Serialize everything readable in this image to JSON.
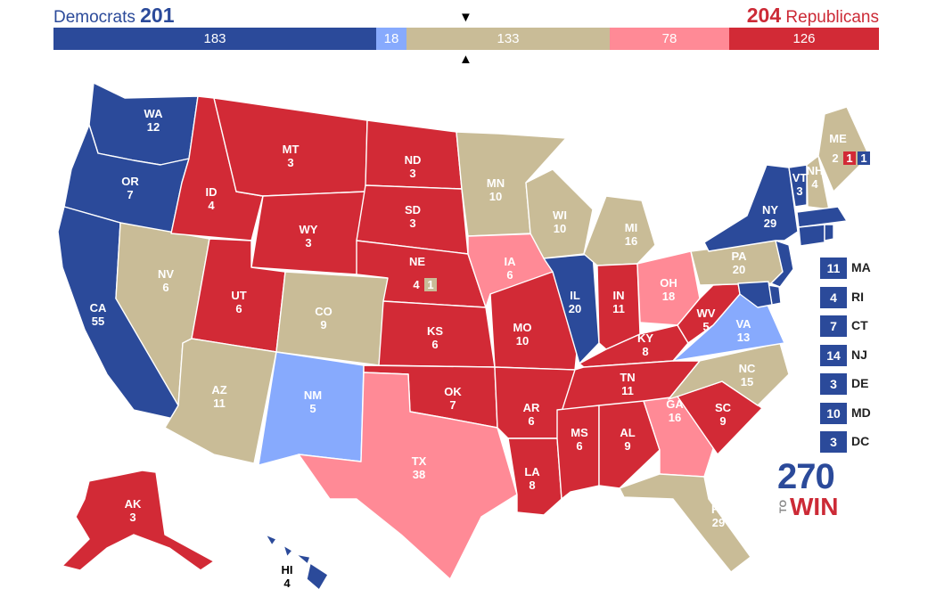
{
  "header": {
    "dem_label": "Democrats",
    "dem_total": "201",
    "rep_total": "204",
    "rep_label": "Republicans"
  },
  "colors": {
    "solid_dem": "#2b4a9a",
    "lean_dem": "#87aafd",
    "tossup": "#c9bc97",
    "lean_rep": "#ff8a96",
    "solid_rep": "#d22a36"
  },
  "bar": [
    {
      "value": "183",
      "category": "solid_dem"
    },
    {
      "value": "18",
      "category": "lean_dem"
    },
    {
      "value": "133",
      "category": "tossup"
    },
    {
      "value": "78",
      "category": "lean_rep"
    },
    {
      "value": "126",
      "category": "solid_rep"
    }
  ],
  "markers": {
    "down": "▼",
    "up": "▲"
  },
  "states": {
    "WA": {
      "ev": "12",
      "category": "solid_dem"
    },
    "OR": {
      "ev": "7",
      "category": "solid_dem"
    },
    "CA": {
      "ev": "55",
      "category": "solid_dem"
    },
    "NV": {
      "ev": "6",
      "category": "tossup"
    },
    "ID": {
      "ev": "4",
      "category": "solid_rep"
    },
    "MT": {
      "ev": "3",
      "category": "solid_rep"
    },
    "WY": {
      "ev": "3",
      "category": "solid_rep"
    },
    "UT": {
      "ev": "6",
      "category": "solid_rep"
    },
    "AZ": {
      "ev": "11",
      "category": "tossup"
    },
    "CO": {
      "ev": "9",
      "category": "tossup"
    },
    "NM": {
      "ev": "5",
      "category": "lean_dem"
    },
    "ND": {
      "ev": "3",
      "category": "solid_rep"
    },
    "SD": {
      "ev": "3",
      "category": "solid_rep"
    },
    "NE": {
      "ev": "4",
      "category": "solid_rep"
    },
    "KS": {
      "ev": "6",
      "category": "solid_rep"
    },
    "OK": {
      "ev": "7",
      "category": "solid_rep"
    },
    "TX": {
      "ev": "38",
      "category": "lean_rep"
    },
    "MN": {
      "ev": "10",
      "category": "tossup"
    },
    "IA": {
      "ev": "6",
      "category": "lean_rep"
    },
    "MO": {
      "ev": "10",
      "category": "solid_rep"
    },
    "AR": {
      "ev": "6",
      "category": "solid_rep"
    },
    "LA": {
      "ev": "8",
      "category": "solid_rep"
    },
    "WI": {
      "ev": "10",
      "category": "tossup"
    },
    "IL": {
      "ev": "20",
      "category": "solid_dem"
    },
    "MI": {
      "ev": "16",
      "category": "tossup"
    },
    "IN": {
      "ev": "11",
      "category": "solid_rep"
    },
    "OH": {
      "ev": "18",
      "category": "lean_rep"
    },
    "KY": {
      "ev": "8",
      "category": "solid_rep"
    },
    "TN": {
      "ev": "11",
      "category": "solid_rep"
    },
    "MS": {
      "ev": "6",
      "category": "solid_rep"
    },
    "AL": {
      "ev": "9",
      "category": "solid_rep"
    },
    "GA": {
      "ev": "16",
      "category": "lean_rep"
    },
    "FL": {
      "ev": "29",
      "category": "tossup"
    },
    "SC": {
      "ev": "9",
      "category": "solid_rep"
    },
    "NC": {
      "ev": "15",
      "category": "tossup"
    },
    "VA": {
      "ev": "13",
      "category": "lean_dem"
    },
    "WV": {
      "ev": "5",
      "category": "solid_rep"
    },
    "PA": {
      "ev": "20",
      "category": "tossup"
    },
    "NY": {
      "ev": "29",
      "category": "solid_dem"
    },
    "VT": {
      "ev": "3",
      "category": "solid_dem"
    },
    "NH": {
      "ev": "4",
      "category": "tossup"
    },
    "ME": {
      "ev": "",
      "category": "tossup"
    },
    "AK": {
      "ev": "3",
      "category": "solid_rep"
    },
    "HI": {
      "ev": "4",
      "category": "solid_dem"
    }
  },
  "splits": {
    "ME": [
      "2",
      "1",
      "1"
    ],
    "NE": [
      "4",
      "1"
    ]
  },
  "small_states": [
    {
      "abbr": "MA",
      "ev": "11",
      "category": "solid_dem"
    },
    {
      "abbr": "RI",
      "ev": "4",
      "category": "solid_dem"
    },
    {
      "abbr": "CT",
      "ev": "7",
      "category": "solid_dem"
    },
    {
      "abbr": "NJ",
      "ev": "14",
      "category": "solid_dem"
    },
    {
      "abbr": "DE",
      "ev": "3",
      "category": "solid_dem"
    },
    {
      "abbr": "MD",
      "ev": "10",
      "category": "solid_dem"
    },
    {
      "abbr": "DC",
      "ev": "3",
      "category": "solid_dem"
    }
  ],
  "logo": {
    "top": "270",
    "to": "TO",
    "win": "WIN"
  }
}
